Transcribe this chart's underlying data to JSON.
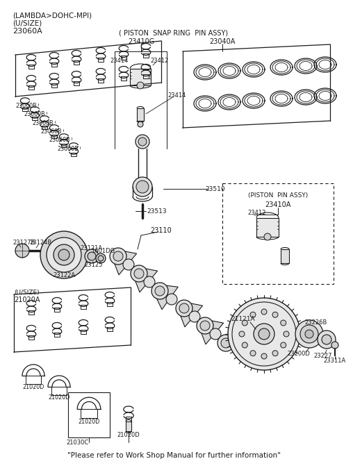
{
  "bg_color": "#ffffff",
  "lc": "#1a1a1a",
  "tc": "#1a1a1a",
  "parts": {
    "label1": "(LAMBDA>DOHC-MPI)",
    "label2": "(U/SIZE)",
    "label3": "23060A",
    "snap_ring_title": "( PISTON  SNAP RING  PIN ASSY)",
    "p23410G": "23410G",
    "p23040A": "23040A",
    "p23414": "23414",
    "p23412": "23412",
    "p23414b": "23414",
    "p23060B": "23060B",
    "p23510": "23510",
    "p23513": "23513",
    "piston_pin_assy": "(PISTON  PIN ASSY)",
    "p23410A": "23410A",
    "p23412b": "23412",
    "p23127B": "23127B",
    "p23124B": "23124B",
    "p23121A": "23121A",
    "p1601DG": "1601DG",
    "p23125": "23125",
    "p23122A": "23122A",
    "p23110": "23110",
    "usize2": "(U/SIZE)",
    "p21020A": "21020A",
    "p21121A": "21121A",
    "p21020D": "21020D",
    "p21030C": "21030C",
    "p23226B": "23226B",
    "p23200D": "23200D",
    "p23227": "23227",
    "p23311A": "23311A"
  },
  "bottom_note": "\"Please refer to Work Shop Manual for further information\""
}
